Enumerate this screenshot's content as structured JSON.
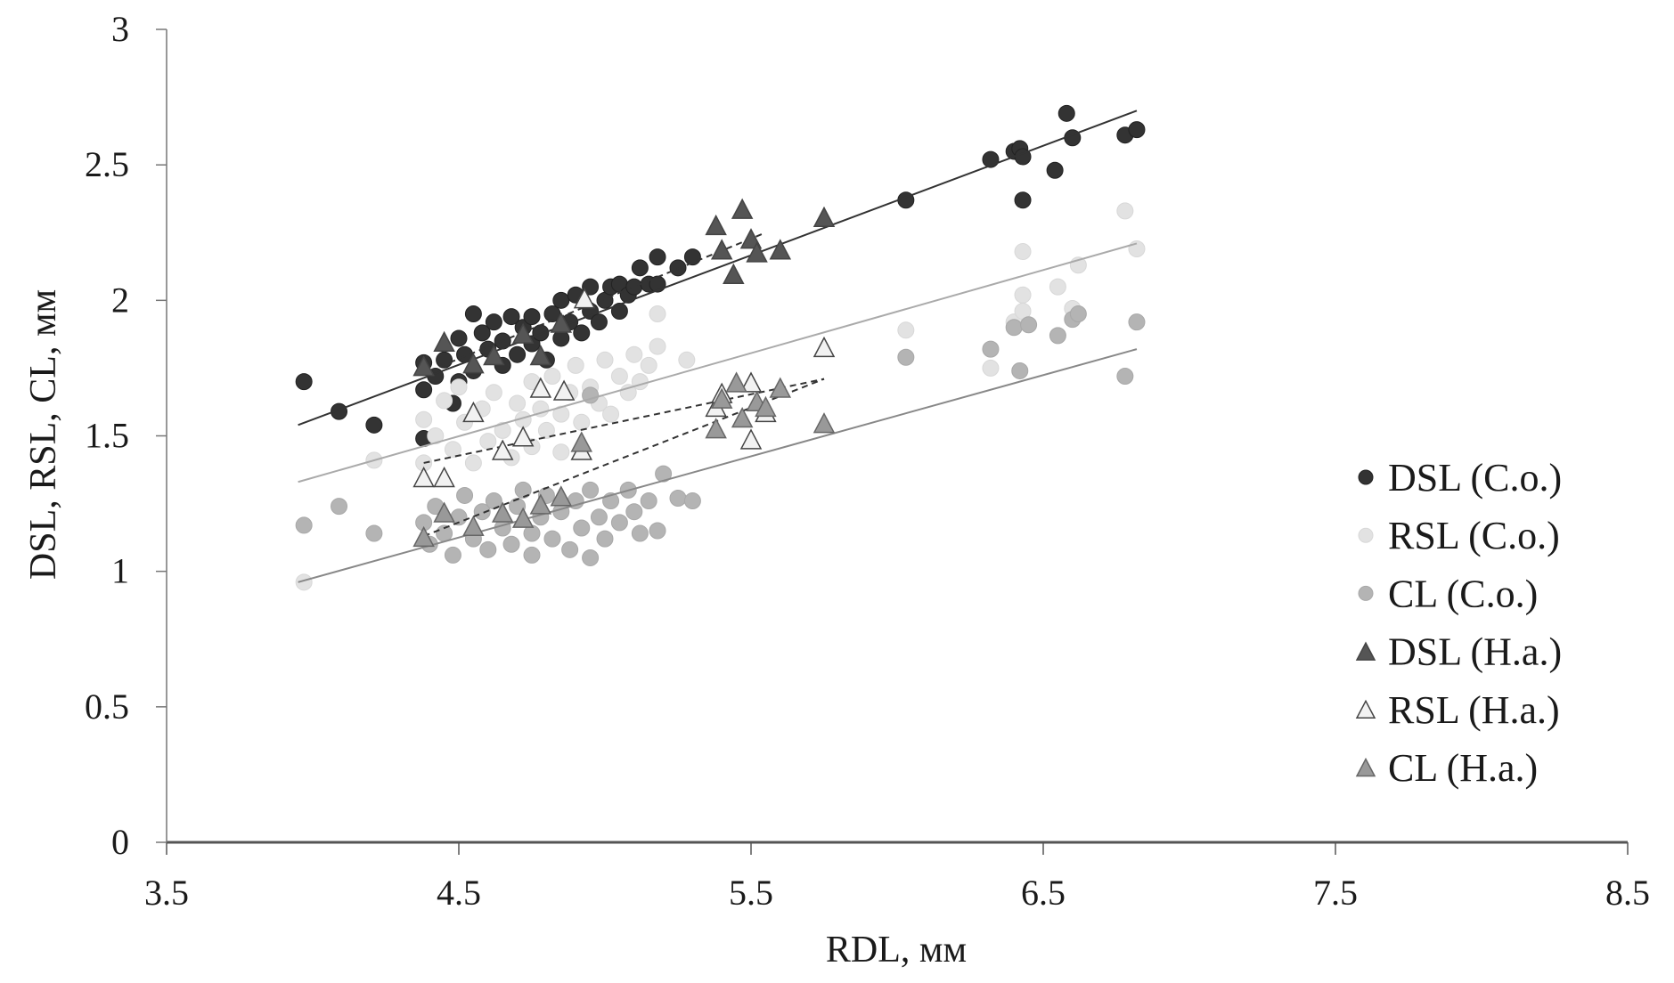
{
  "chart_data": {
    "type": "scatter",
    "xlabel": "RDL, мм",
    "ylabel": "DSL, RSL, CL, мм",
    "xlim": [
      3.5,
      8.5
    ],
    "ylim": [
      0,
      3
    ],
    "xticks": [
      "3.5",
      "4.5",
      "5.5",
      "6.5",
      "7.5",
      "8.5"
    ],
    "yticks": [
      "0",
      "0.5",
      "1",
      "1.5",
      "2",
      "2.5",
      "3"
    ],
    "grid": false,
    "legend_position": "right",
    "series": [
      {
        "name": "DSL (C.o.)",
        "marker": "circle",
        "color": "#333333",
        "stroke": "#222222",
        "trendline": {
          "style": "solid",
          "color": "#333333",
          "from": [
            3.95,
            1.54
          ],
          "to": [
            6.82,
            2.7
          ]
        },
        "points": [
          [
            3.97,
            1.7
          ],
          [
            4.09,
            1.59
          ],
          [
            4.21,
            1.54
          ],
          [
            4.38,
            1.77
          ],
          [
            4.38,
            1.67
          ],
          [
            4.38,
            1.49
          ],
          [
            4.42,
            1.72
          ],
          [
            4.45,
            1.78
          ],
          [
            4.48,
            1.62
          ],
          [
            4.5,
            1.86
          ],
          [
            4.5,
            1.7
          ],
          [
            4.52,
            1.8
          ],
          [
            4.55,
            1.95
          ],
          [
            4.55,
            1.74
          ],
          [
            4.58,
            1.88
          ],
          [
            4.6,
            1.82
          ],
          [
            4.62,
            1.92
          ],
          [
            4.65,
            1.85
          ],
          [
            4.65,
            1.76
          ],
          [
            4.68,
            1.94
          ],
          [
            4.7,
            1.8
          ],
          [
            4.72,
            1.9
          ],
          [
            4.75,
            1.84
          ],
          [
            4.75,
            1.94
          ],
          [
            4.78,
            1.88
          ],
          [
            4.8,
            1.78
          ],
          [
            4.82,
            1.95
          ],
          [
            4.85,
            1.86
          ],
          [
            4.85,
            2.0
          ],
          [
            4.88,
            1.92
          ],
          [
            4.9,
            2.02
          ],
          [
            4.92,
            1.88
          ],
          [
            4.95,
            1.96
          ],
          [
            4.95,
            2.05
          ],
          [
            4.98,
            1.92
          ],
          [
            5.0,
            2.0
          ],
          [
            5.02,
            2.05
          ],
          [
            5.05,
            1.96
          ],
          [
            5.05,
            2.06
          ],
          [
            5.08,
            2.02
          ],
          [
            5.1,
            2.05
          ],
          [
            5.12,
            2.12
          ],
          [
            5.15,
            2.06
          ],
          [
            5.18,
            2.16
          ],
          [
            5.18,
            2.06
          ],
          [
            5.25,
            2.12
          ],
          [
            5.3,
            2.16
          ],
          [
            6.03,
            2.37
          ],
          [
            6.32,
            2.52
          ],
          [
            6.4,
            2.55
          ],
          [
            6.42,
            2.56
          ],
          [
            6.43,
            2.53
          ],
          [
            6.43,
            2.37
          ],
          [
            6.54,
            2.48
          ],
          [
            6.58,
            2.69
          ],
          [
            6.6,
            2.6
          ],
          [
            6.78,
            2.61
          ],
          [
            6.82,
            2.63
          ]
        ]
      },
      {
        "name": "RSL (C.o.)",
        "marker": "circle",
        "color": "#e2e2e2",
        "stroke": "#d8d8d8",
        "trendline": {
          "style": "solid",
          "color": "#aaaaaa",
          "from": [
            3.95,
            1.33
          ],
          "to": [
            6.82,
            2.21
          ]
        },
        "points": [
          [
            3.97,
            0.96
          ],
          [
            4.21,
            1.41
          ],
          [
            4.38,
            1.56
          ],
          [
            4.38,
            1.4
          ],
          [
            4.42,
            1.5
          ],
          [
            4.45,
            1.63
          ],
          [
            4.48,
            1.45
          ],
          [
            4.5,
            1.68
          ],
          [
            4.52,
            1.55
          ],
          [
            4.55,
            1.4
          ],
          [
            4.58,
            1.6
          ],
          [
            4.6,
            1.48
          ],
          [
            4.62,
            1.66
          ],
          [
            4.65,
            1.52
          ],
          [
            4.68,
            1.42
          ],
          [
            4.7,
            1.62
          ],
          [
            4.72,
            1.56
          ],
          [
            4.75,
            1.7
          ],
          [
            4.75,
            1.46
          ],
          [
            4.78,
            1.6
          ],
          [
            4.8,
            1.52
          ],
          [
            4.82,
            1.72
          ],
          [
            4.85,
            1.58
          ],
          [
            4.85,
            1.44
          ],
          [
            4.88,
            1.66
          ],
          [
            4.9,
            1.76
          ],
          [
            4.92,
            1.55
          ],
          [
            4.95,
            1.68
          ],
          [
            4.98,
            1.62
          ],
          [
            5.0,
            1.78
          ],
          [
            5.02,
            1.58
          ],
          [
            5.05,
            1.72
          ],
          [
            5.08,
            1.66
          ],
          [
            5.1,
            1.8
          ],
          [
            5.12,
            1.7
          ],
          [
            5.15,
            1.76
          ],
          [
            5.18,
            1.95
          ],
          [
            5.18,
            1.83
          ],
          [
            5.28,
            1.78
          ],
          [
            6.03,
            1.89
          ],
          [
            6.32,
            1.75
          ],
          [
            6.4,
            1.92
          ],
          [
            6.43,
            2.18
          ],
          [
            6.43,
            2.02
          ],
          [
            6.43,
            1.96
          ],
          [
            6.55,
            2.05
          ],
          [
            6.6,
            1.97
          ],
          [
            6.62,
            2.13
          ],
          [
            6.78,
            2.33
          ],
          [
            6.82,
            2.19
          ]
        ]
      },
      {
        "name": "CL (C.o.)",
        "marker": "circle",
        "color": "#b4b4b4",
        "stroke": "#a8a8a8",
        "trendline": {
          "style": "solid",
          "color": "#888888",
          "from": [
            3.95,
            0.96
          ],
          "to": [
            6.82,
            1.82
          ]
        },
        "points": [
          [
            3.97,
            1.17
          ],
          [
            4.09,
            1.24
          ],
          [
            4.21,
            1.14
          ],
          [
            4.38,
            1.18
          ],
          [
            4.4,
            1.1
          ],
          [
            4.42,
            1.24
          ],
          [
            4.45,
            1.14
          ],
          [
            4.48,
            1.06
          ],
          [
            4.5,
            1.2
          ],
          [
            4.52,
            1.28
          ],
          [
            4.55,
            1.12
          ],
          [
            4.58,
            1.22
          ],
          [
            4.6,
            1.08
          ],
          [
            4.62,
            1.26
          ],
          [
            4.65,
            1.16
          ],
          [
            4.68,
            1.1
          ],
          [
            4.7,
            1.24
          ],
          [
            4.72,
            1.3
          ],
          [
            4.75,
            1.14
          ],
          [
            4.75,
            1.06
          ],
          [
            4.78,
            1.2
          ],
          [
            4.8,
            1.28
          ],
          [
            4.82,
            1.12
          ],
          [
            4.85,
            1.22
          ],
          [
            4.88,
            1.08
          ],
          [
            4.9,
            1.26
          ],
          [
            4.92,
            1.16
          ],
          [
            4.95,
            1.05
          ],
          [
            4.95,
            1.3
          ],
          [
            4.98,
            1.2
          ],
          [
            5.0,
            1.12
          ],
          [
            5.02,
            1.26
          ],
          [
            5.05,
            1.18
          ],
          [
            5.08,
            1.3
          ],
          [
            5.1,
            1.22
          ],
          [
            5.12,
            1.14
          ],
          [
            5.15,
            1.26
          ],
          [
            5.18,
            1.15
          ],
          [
            5.2,
            1.36
          ],
          [
            4.95,
            1.65
          ],
          [
            5.25,
            1.27
          ],
          [
            5.3,
            1.26
          ],
          [
            6.03,
            1.79
          ],
          [
            6.32,
            1.82
          ],
          [
            6.4,
            1.9
          ],
          [
            6.42,
            1.74
          ],
          [
            6.45,
            1.91
          ],
          [
            6.55,
            1.87
          ],
          [
            6.6,
            1.93
          ],
          [
            6.62,
            1.95
          ],
          [
            6.78,
            1.72
          ],
          [
            6.82,
            1.92
          ]
        ]
      },
      {
        "name": "DSL (H.a.)",
        "marker": "triangle",
        "color": "#555555",
        "stroke": "#444444",
        "trendline": {
          "style": "dashed",
          "color": "#333333",
          "from": [
            4.4,
            1.74
          ],
          "to": [
            5.55,
            2.25
          ]
        },
        "points": [
          [
            4.38,
            1.75
          ],
          [
            4.45,
            1.84
          ],
          [
            4.55,
            1.76
          ],
          [
            4.62,
            1.79
          ],
          [
            4.72,
            1.87
          ],
          [
            4.78,
            1.79
          ],
          [
            4.85,
            1.91
          ],
          [
            5.38,
            2.27
          ],
          [
            5.4,
            2.18
          ],
          [
            5.44,
            2.09
          ],
          [
            5.47,
            2.33
          ],
          [
            5.5,
            2.22
          ],
          [
            5.52,
            2.17
          ],
          [
            5.6,
            2.18
          ],
          [
            5.75,
            2.3
          ]
        ]
      },
      {
        "name": "RSL (H.a.)",
        "marker": "triangle",
        "color": "#f2f2f2",
        "stroke": "#444444",
        "trendline": {
          "style": "dashed",
          "color": "#333333",
          "from": [
            4.38,
            1.4
          ],
          "to": [
            5.75,
            1.71
          ]
        },
        "points": [
          [
            4.38,
            1.34
          ],
          [
            4.45,
            1.34
          ],
          [
            4.55,
            1.58
          ],
          [
            4.65,
            1.44
          ],
          [
            4.72,
            1.49
          ],
          [
            4.78,
            1.67
          ],
          [
            4.86,
            1.66
          ],
          [
            4.92,
            1.44
          ],
          [
            4.93,
            2.0
          ],
          [
            5.38,
            1.6
          ],
          [
            5.4,
            1.65
          ],
          [
            5.5,
            1.69
          ],
          [
            5.5,
            1.48
          ],
          [
            5.55,
            1.58
          ],
          [
            5.75,
            1.82
          ]
        ]
      },
      {
        "name": "CL (H.a.)",
        "marker": "triangle",
        "color": "#999999",
        "stroke": "#666666",
        "trendline": {
          "style": "dashed",
          "color": "#333333",
          "from": [
            4.38,
            1.13
          ],
          "to": [
            5.75,
            1.71
          ]
        },
        "points": [
          [
            4.38,
            1.12
          ],
          [
            4.45,
            1.21
          ],
          [
            4.55,
            1.16
          ],
          [
            4.65,
            1.21
          ],
          [
            4.72,
            1.19
          ],
          [
            4.78,
            1.24
          ],
          [
            4.85,
            1.27
          ],
          [
            4.92,
            1.47
          ],
          [
            5.38,
            1.52
          ],
          [
            5.4,
            1.63
          ],
          [
            5.45,
            1.69
          ],
          [
            5.47,
            1.56
          ],
          [
            5.52,
            1.62
          ],
          [
            5.55,
            1.6
          ],
          [
            5.6,
            1.67
          ],
          [
            5.75,
            1.54
          ]
        ]
      }
    ]
  }
}
